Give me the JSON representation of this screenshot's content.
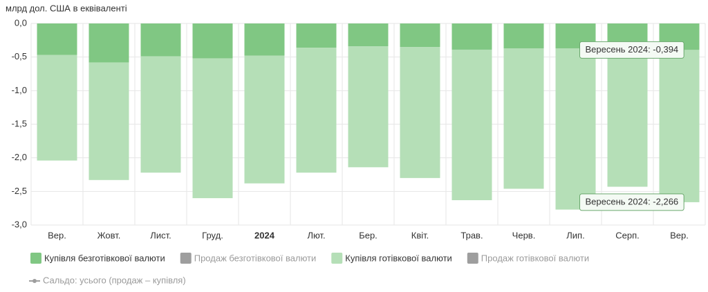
{
  "chart_data": {
    "type": "stacked_bar",
    "y_label": "млрд дол. США в еквіваленті",
    "categories": [
      "Вер.",
      "Жовт.",
      "Лист.",
      "Груд.",
      "2024",
      "Лют.",
      "Бер.",
      "Квіт.",
      "Трав.",
      "Черв.",
      "Лип.",
      "Серп.",
      "Вер."
    ],
    "series": [
      {
        "name": "Купівля безготівкової валюти",
        "color": "#80c783",
        "values": [
          -0.47,
          -0.58,
          -0.49,
          -0.52,
          -0.48,
          -0.36,
          -0.34,
          -0.35,
          -0.39,
          -0.37,
          -0.37,
          -0.38,
          -0.394
        ]
      },
      {
        "name": "Купівля готівкової валюти",
        "color": "#b5dfb7",
        "values": [
          -1.57,
          -1.75,
          -1.73,
          -2.08,
          -1.9,
          -1.86,
          -1.8,
          -1.95,
          -2.24,
          -2.09,
          -2.4,
          -2.05,
          -2.266
        ]
      }
    ],
    "hidden_legend": [
      {
        "name": "Продаж безготівкової валюти",
        "color": "#9e9e9e"
      },
      {
        "name": "Продаж готівкової валюти",
        "color": "#9e9e9e"
      },
      {
        "name": "Сальдо: усього (продаж – купівля)",
        "color": "#9e9e9e"
      }
    ],
    "annotations": [
      {
        "text": "Вересень 2024: -0,394"
      },
      {
        "text": "Вересень 2024: -2,266"
      }
    ],
    "ylim": [
      0,
      -3
    ],
    "yticks": [
      {
        "value": 0,
        "label": "0,0"
      },
      {
        "value": -0.5,
        "label": "-0,5"
      },
      {
        "value": -1,
        "label": "-1,0"
      },
      {
        "value": -1.5,
        "label": "-1,5"
      },
      {
        "value": -2,
        "label": "-2,0"
      },
      {
        "value": -2.5,
        "label": "-2,5"
      },
      {
        "value": -3,
        "label": "-3,0"
      }
    ],
    "grid": true
  }
}
